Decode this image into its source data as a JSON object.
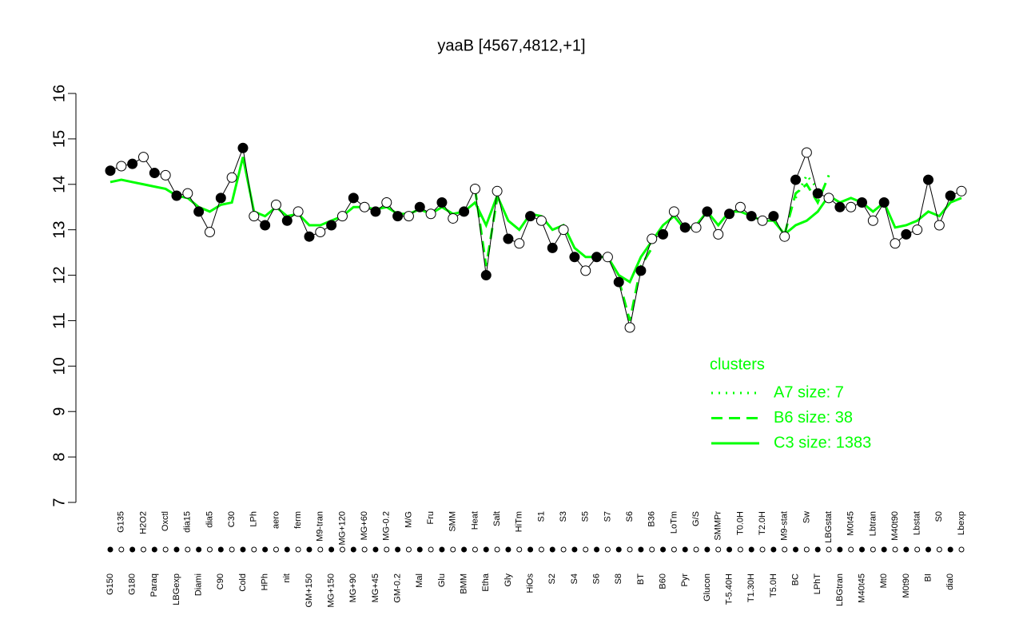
{
  "chart_data": {
    "type": "line",
    "title": "yaaB [4567,4812,+1]",
    "categories": [
      "G150",
      "G135",
      "G180",
      "H2O2",
      "Paraq",
      "Oxctl",
      "LBGexp",
      "dia15",
      "Diami",
      "dia5",
      "C90",
      "C30",
      "Cold",
      "LPh",
      "HPh",
      "aero",
      "nit",
      "ferm",
      "GM+150",
      "M9-tran",
      "MG+150",
      "MG+120",
      "MG+90",
      "MG+60",
      "MG+45",
      "MG-0.2",
      "GM-0.2",
      "M/G",
      "Mal",
      "Fru",
      "Glu",
      "SMM",
      "BMM",
      "Heat",
      "Etha",
      "Salt",
      "Gly",
      "HiTm",
      "HiOs",
      "S1",
      "S2",
      "S3",
      "S4",
      "S5",
      "S6",
      "S7",
      "S8",
      "S6",
      "BT",
      "B36",
      "B60",
      "LoTm",
      "Pyr",
      "G/S",
      "Glucon",
      "SMMPr",
      "T-5.40H",
      "T0.0H",
      "T1.30H",
      "T2.0H",
      "T5.0H",
      "M9-stat",
      "BC",
      "Sw",
      "LPhT",
      "LBGstat",
      "LBGtran",
      "M0t45",
      "M40t45",
      "Lbtran",
      "Mt0",
      "M40t90",
      "M0t90",
      "Lbstat",
      "BI",
      "S0",
      "dia0",
      "Lbexp"
    ],
    "values": [
      14.3,
      14.4,
      14.45,
      14.6,
      14.25,
      14.2,
      13.75,
      13.8,
      13.4,
      12.95,
      13.7,
      14.15,
      14.8,
      13.3,
      13.1,
      13.55,
      13.2,
      13.4,
      12.85,
      12.95,
      13.1,
      13.3,
      13.7,
      13.5,
      13.4,
      13.6,
      13.3,
      13.3,
      13.5,
      13.35,
      13.6,
      13.25,
      13.4,
      13.9,
      12.0,
      13.85,
      12.8,
      12.7,
      13.3,
      13.2,
      12.6,
      13.0,
      12.4,
      12.1,
      12.4,
      12.4,
      11.85,
      10.85,
      12.1,
      12.8,
      12.9,
      13.4,
      13.05,
      13.05,
      13.4,
      12.9,
      13.35,
      13.5,
      13.3,
      13.2,
      13.3,
      12.85,
      14.1,
      14.7,
      13.8,
      13.7,
      13.5,
      13.5,
      13.6,
      13.2,
      13.6,
      12.7,
      12.9,
      13.0,
      14.1,
      13.1,
      13.75,
      13.85
    ],
    "color": "#000000",
    "legend_title": "clusters",
    "series": [
      {
        "name": "A7 size: 7",
        "color": "#00ff00",
        "dash": "dotted",
        "values": [
          null,
          null,
          null,
          null,
          null,
          null,
          null,
          null,
          null,
          null,
          null,
          null,
          null,
          null,
          null,
          null,
          null,
          null,
          null,
          null,
          null,
          null,
          null,
          null,
          null,
          null,
          null,
          null,
          null,
          null,
          null,
          null,
          null,
          null,
          null,
          null,
          null,
          null,
          null,
          null,
          null,
          null,
          null,
          null,
          null,
          null,
          null,
          null,
          null,
          null,
          null,
          null,
          null,
          null,
          null,
          null,
          null,
          null,
          null,
          null,
          null,
          null,
          13.7,
          14.2,
          13.9,
          null,
          null,
          null,
          null,
          null,
          null,
          null,
          null,
          null,
          null,
          null,
          null,
          null
        ]
      },
      {
        "name": "B6 size: 38",
        "color": "#00ff00",
        "dash": "dashed",
        "values": [
          null,
          null,
          null,
          null,
          null,
          null,
          null,
          null,
          null,
          null,
          null,
          null,
          null,
          null,
          null,
          null,
          null,
          null,
          null,
          null,
          null,
          null,
          null,
          null,
          null,
          null,
          null,
          null,
          null,
          null,
          null,
          null,
          null,
          13.9,
          12.2,
          13.7,
          null,
          null,
          null,
          null,
          null,
          null,
          null,
          null,
          null,
          null,
          11.9,
          11.0,
          12.2,
          12.6,
          null,
          null,
          null,
          null,
          null,
          null,
          null,
          null,
          null,
          null,
          null,
          12.9,
          13.8,
          14.0,
          13.6,
          14.2,
          null,
          null,
          null,
          null,
          null,
          null,
          null,
          null,
          null,
          null,
          null,
          null
        ]
      },
      {
        "name": "C3 size: 1383",
        "color": "#00ff00",
        "dash": "solid",
        "values": [
          14.05,
          14.1,
          14.05,
          14.0,
          13.95,
          13.9,
          13.75,
          13.7,
          13.5,
          13.4,
          13.55,
          13.6,
          14.6,
          13.4,
          13.3,
          13.5,
          13.3,
          13.35,
          13.1,
          13.1,
          13.2,
          13.3,
          13.5,
          13.5,
          13.45,
          13.5,
          13.35,
          13.35,
          13.45,
          13.35,
          13.5,
          13.35,
          13.4,
          13.6,
          13.1,
          13.75,
          13.2,
          13.0,
          13.35,
          13.3,
          13.0,
          13.1,
          12.6,
          12.4,
          12.4,
          12.4,
          12.0,
          11.85,
          12.4,
          12.75,
          13.1,
          13.3,
          13.0,
          13.1,
          13.4,
          13.1,
          13.4,
          13.4,
          13.3,
          13.2,
          13.2,
          12.9,
          13.1,
          13.2,
          13.4,
          13.75,
          13.6,
          13.7,
          13.6,
          13.4,
          13.6,
          13.05,
          13.1,
          13.2,
          13.4,
          13.3,
          13.6,
          13.7
        ]
      }
    ],
    "ylim": [
      7,
      16
    ],
    "yticks": [
      7,
      8,
      9,
      10,
      11,
      12,
      13,
      14,
      15,
      16
    ],
    "grid": false
  }
}
